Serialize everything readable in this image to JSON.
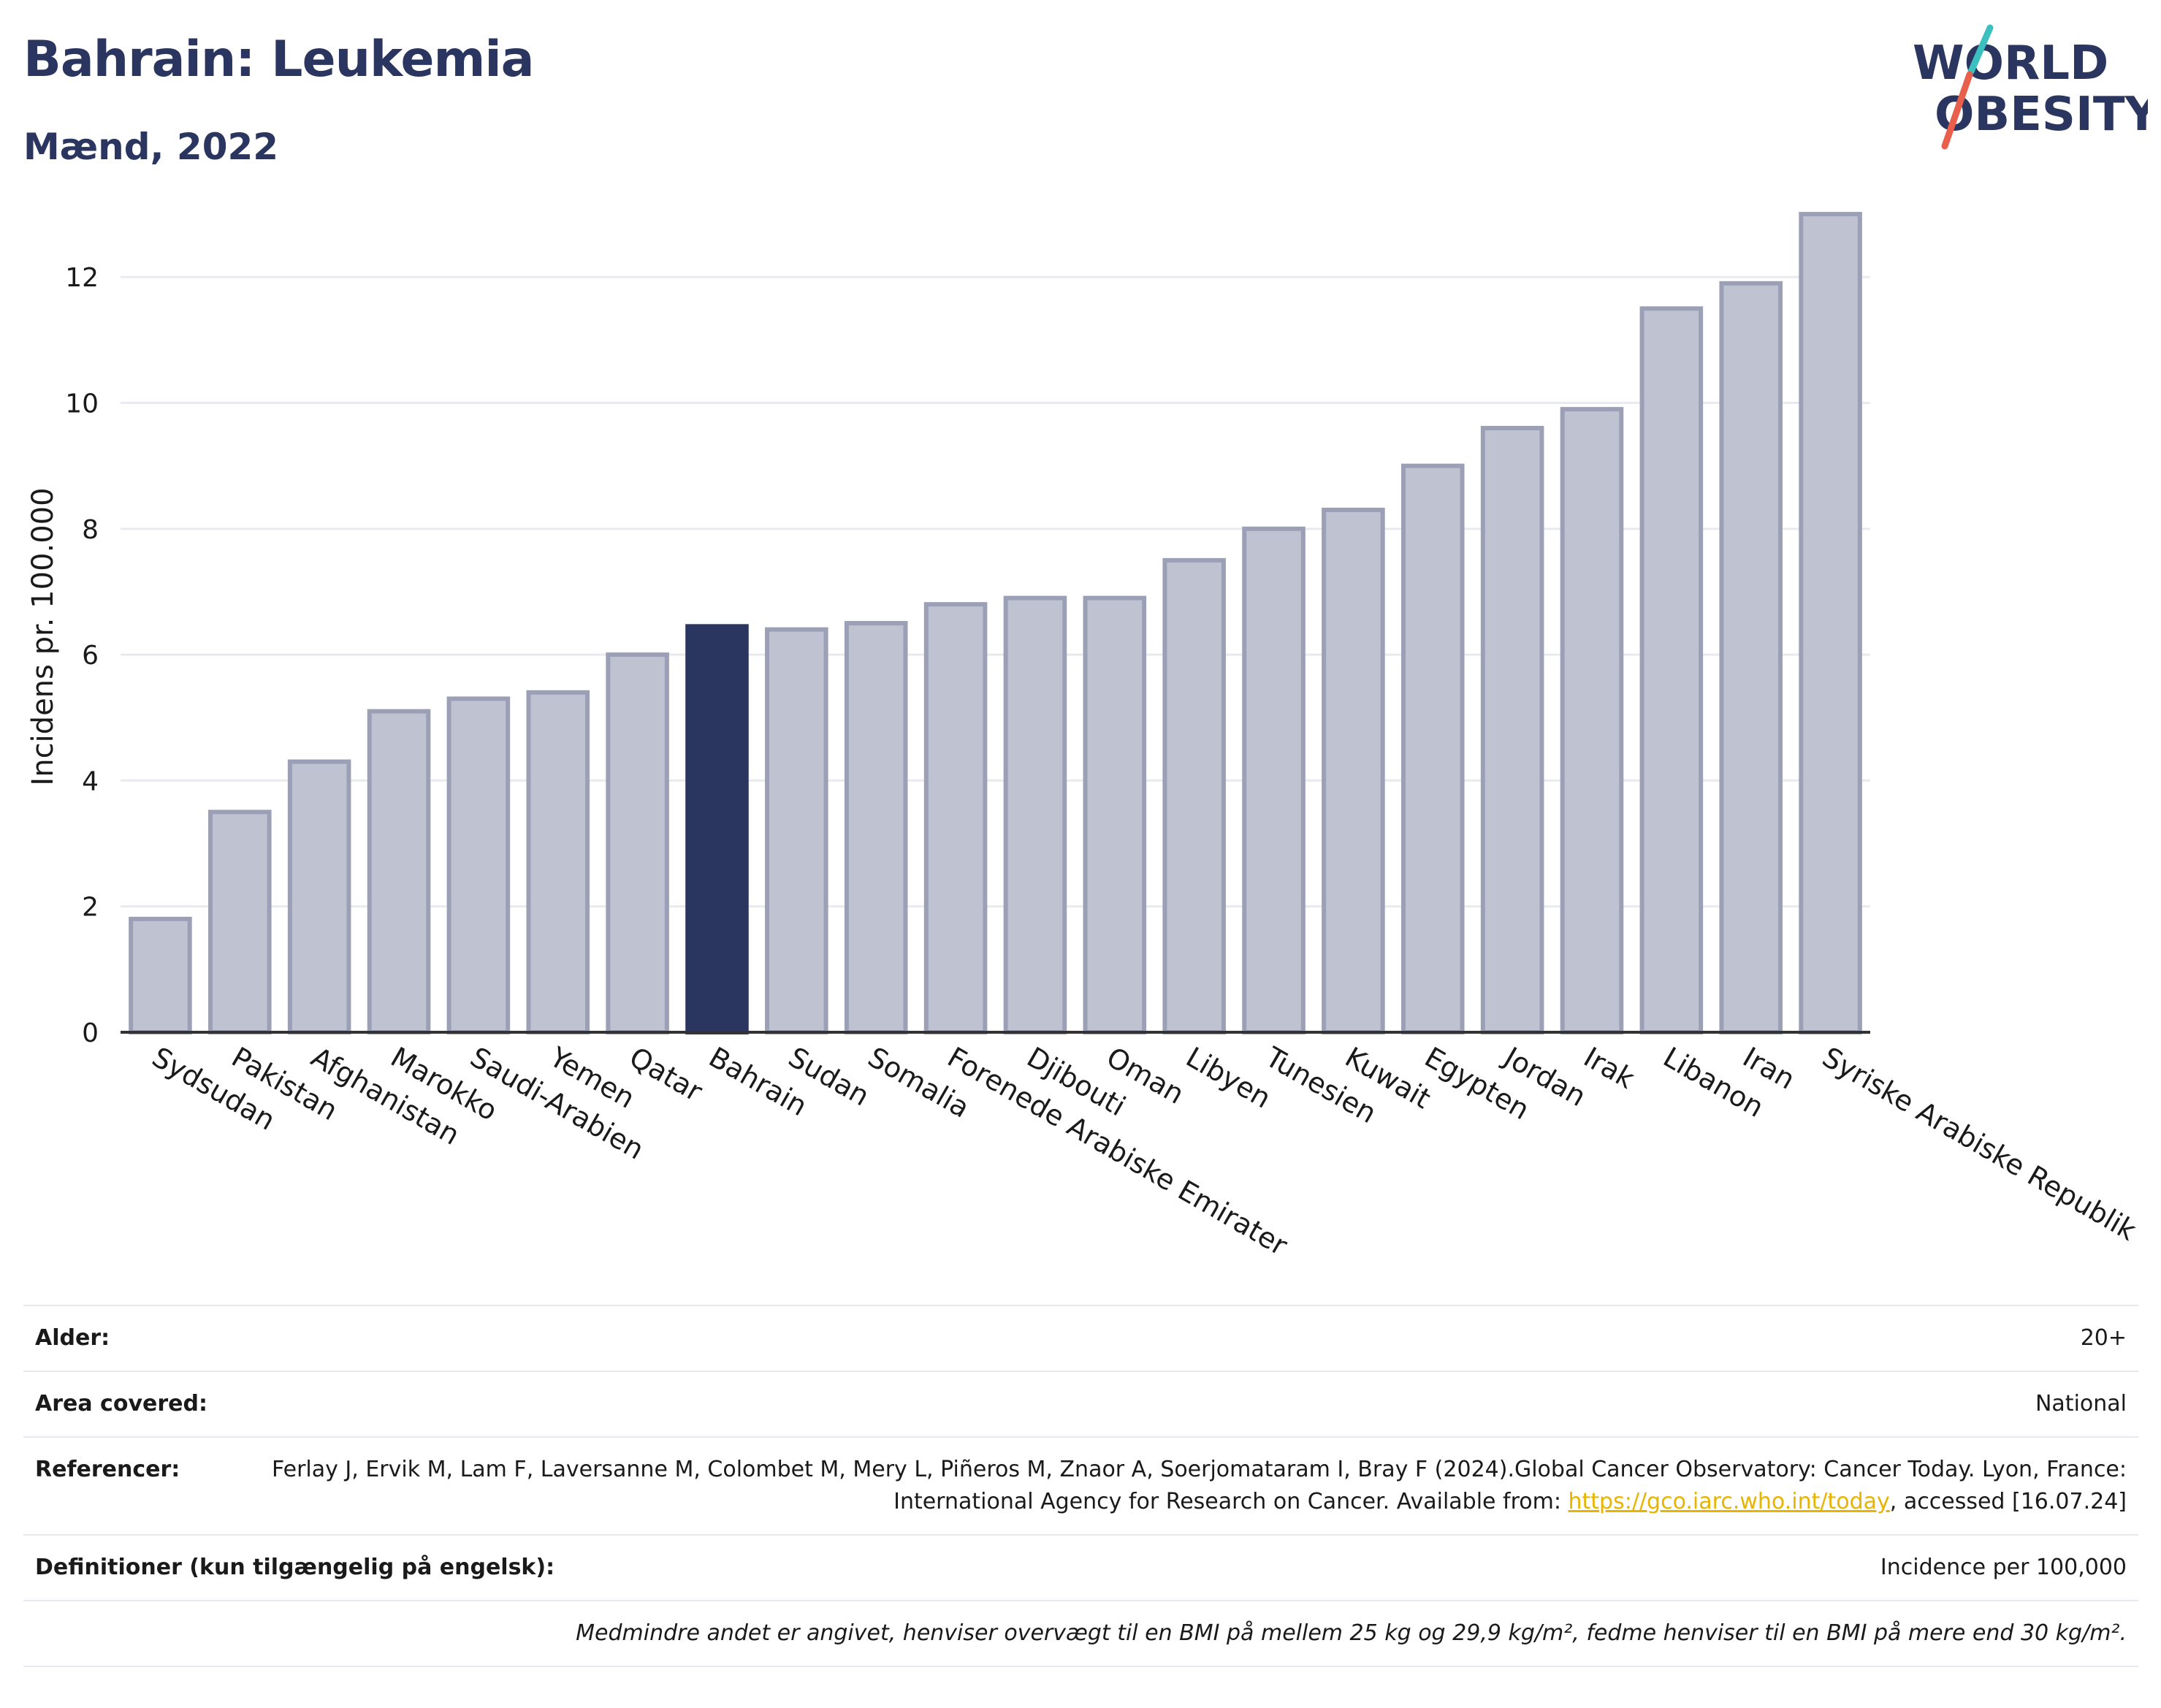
{
  "header": {
    "title": "Bahrain: Leukemia",
    "subtitle": "Mænd, 2022"
  },
  "logo": {
    "line1": "WORLD",
    "line2": "OBESITY",
    "colors": {
      "text": "#2b3660",
      "slash_top": "#3bbfbf",
      "slash_bottom": "#e8604c"
    }
  },
  "chart_data": {
    "type": "bar",
    "ylabel": "Incidens pr. 100.000",
    "xlabel": "",
    "ylim": [
      0,
      13.5
    ],
    "yticks": [
      0,
      2,
      4,
      6,
      8,
      10,
      12
    ],
    "grid": true,
    "highlight": "Bahrain",
    "colors": {
      "bar": "#bfc2d0",
      "bar_stroke": "#9ba0b6",
      "highlight": "#2b3660",
      "grid": "#e8eaf0",
      "axis": "#333333"
    },
    "categories": [
      "Sydsudan",
      "Pakistan",
      "Afghanistan",
      "Marokko",
      "Saudi-Arabien",
      "Yemen",
      "Qatar",
      "Bahrain",
      "Sudan",
      "Somalia",
      "Forenede Arabiske Emirater",
      "Djibouti",
      "Oman",
      "Libyen",
      "Tunesien",
      "Kuwait",
      "Egypten",
      "Jordan",
      "Irak",
      "Libanon",
      "Iran",
      "Syriske Arabiske Republik"
    ],
    "values": [
      1.8,
      3.5,
      4.3,
      5.1,
      5.3,
      5.4,
      6.0,
      6.45,
      6.4,
      6.5,
      6.8,
      6.9,
      6.9,
      7.5,
      8.0,
      8.3,
      9.0,
      9.6,
      9.9,
      11.5,
      11.9,
      13.0
    ]
  },
  "meta": {
    "age_label": "Alder:",
    "age_value": "20+",
    "area_label": "Area covered:",
    "area_value": "National",
    "refs_label": "Referencer:",
    "refs_text_1": "Ferlay J, Ervik M, Lam F, Laversanne M, Colombet M, Mery L, Piñeros M, Znaor A, Soerjomataram I, Bray F (2024).Global Cancer Observatory: Cancer Today. Lyon, France: International Agency for Research on Cancer. Available from: ",
    "refs_link": "https://gco.iarc.who.int/today",
    "refs_text_2": ", accessed [16.07.24]",
    "defs_label": "Definitioner (kun tilgængelig på engelsk):",
    "defs_value": "Incidence per 100,000",
    "note": "Medmindre andet er angivet, henviser overvægt til en BMI på mellem 25 kg og 29,9 kg/m², fedme henviser til en BMI på mere end 30 kg/m²."
  }
}
